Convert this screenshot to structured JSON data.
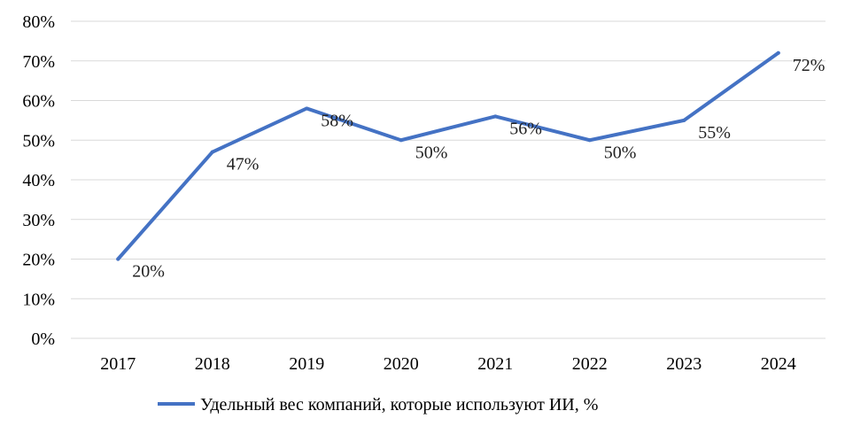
{
  "chart_data": {
    "type": "line",
    "categories": [
      "2017",
      "2018",
      "2019",
      "2020",
      "2021",
      "2022",
      "2023",
      "2024"
    ],
    "series": [
      {
        "name": "Удельный вес компаний, которые используют ИИ, %",
        "values": [
          20,
          47,
          58,
          50,
          56,
          50,
          55,
          72
        ],
        "labels": [
          "20%",
          "47%",
          "58%",
          "50%",
          "56%",
          "50%",
          "55%",
          "72%"
        ],
        "color": "#4472C4"
      }
    ],
    "ylim": [
      0,
      80
    ],
    "yticks": [
      "0%",
      "10%",
      "20%",
      "30%",
      "40%",
      "50%",
      "60%",
      "70%",
      "80%"
    ],
    "grid": true,
    "gridColor": "#d9d9d9",
    "legend": "bottom"
  }
}
